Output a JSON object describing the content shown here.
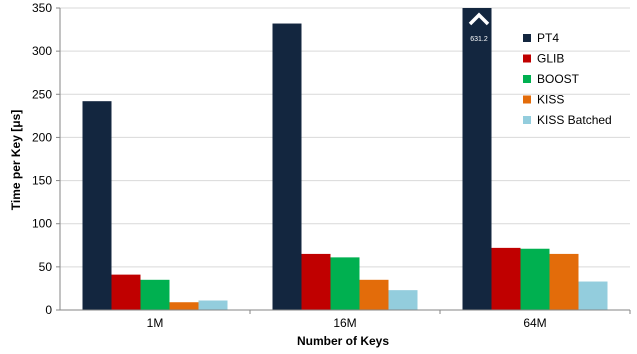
{
  "chart_data": {
    "type": "bar",
    "categories": [
      "1M",
      "16M",
      "64M"
    ],
    "series": [
      {
        "name": "PT4",
        "color": "#13263f",
        "values": [
          242,
          332,
          350
        ]
      },
      {
        "name": "GLIB",
        "color": "#c00000",
        "values": [
          41,
          65,
          72
        ]
      },
      {
        "name": "BOOST",
        "color": "#00b050",
        "values": [
          35,
          61,
          71
        ]
      },
      {
        "name": "KISS",
        "color": "#e36c0a",
        "values": [
          9,
          35,
          65
        ]
      },
      {
        "name": "KISS Batched",
        "color": "#93cddd",
        "values": [
          11,
          23,
          33
        ]
      }
    ],
    "xlabel": "Number of Keys",
    "ylabel": "Time per Key [μs]",
    "ylim": [
      0,
      350
    ],
    "yticks": [
      0,
      50,
      100,
      150,
      200,
      250,
      300,
      350
    ],
    "legend_position": "right",
    "annotation": {
      "text": "631.2",
      "icon": "chevron-up-icon"
    }
  }
}
